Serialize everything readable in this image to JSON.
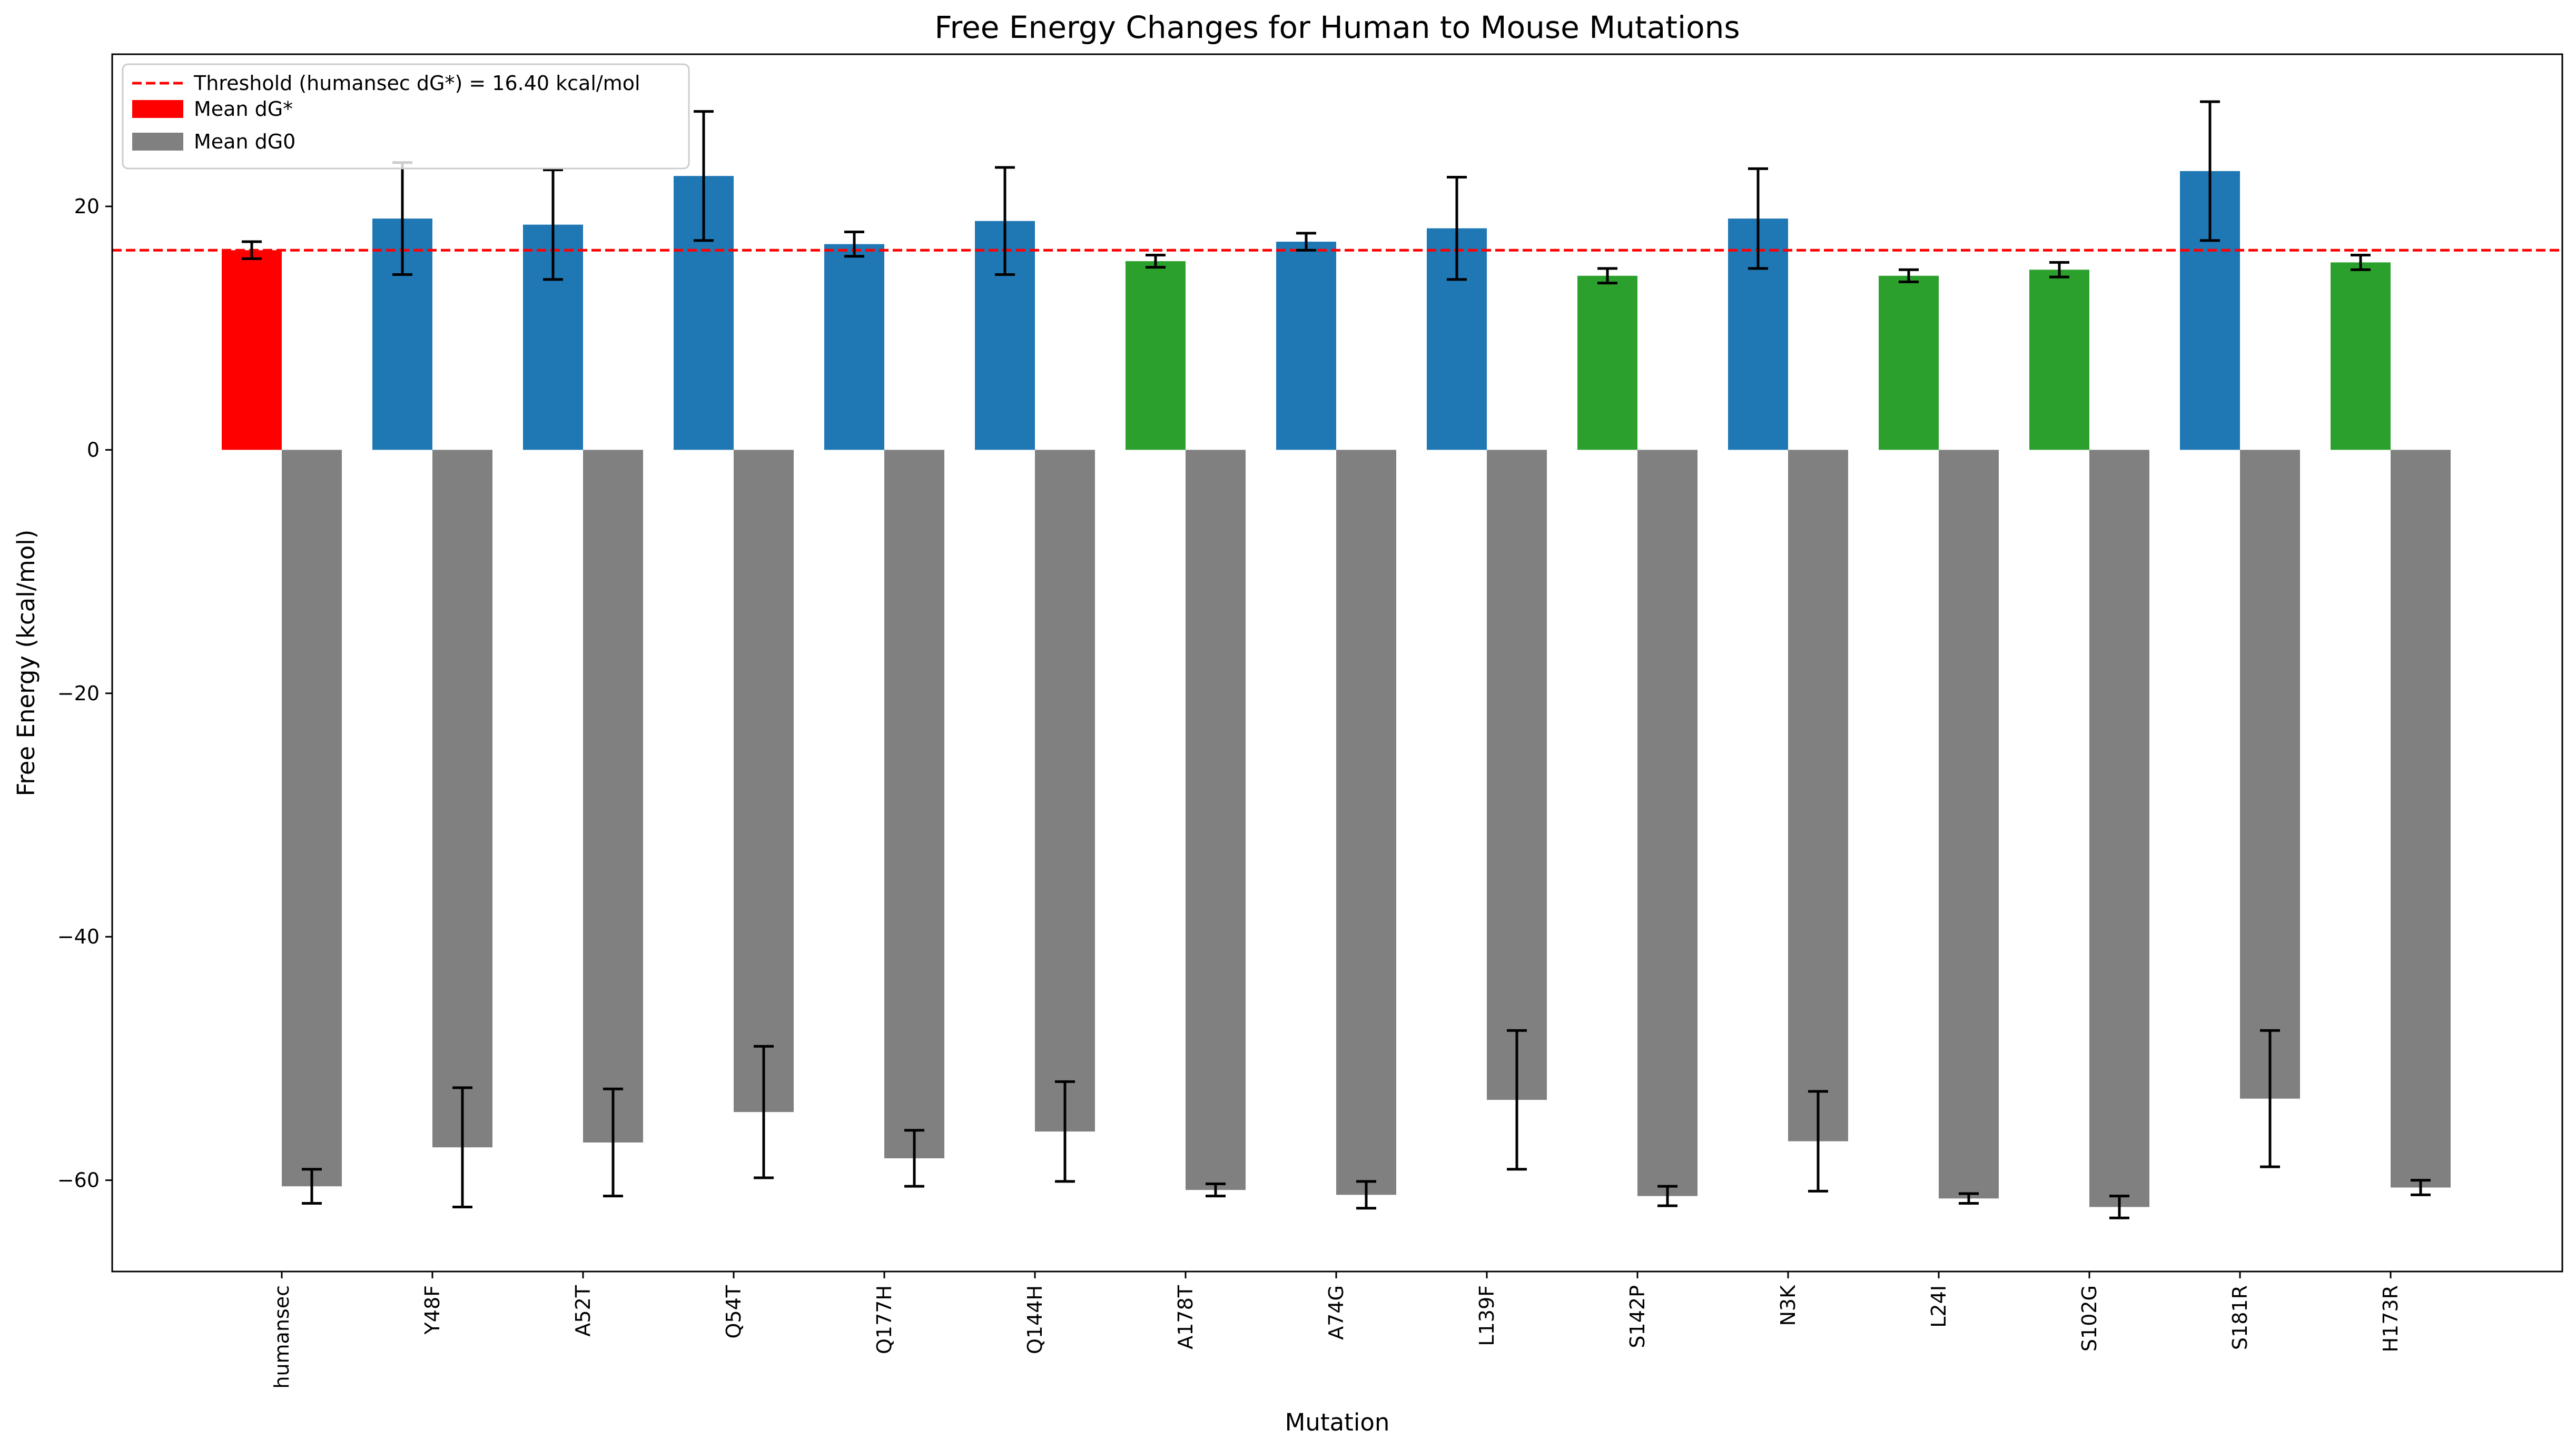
{
  "chart_data": {
    "type": "bar",
    "title": "Free Energy Changes for Human to Mouse Mutations",
    "xlabel": "Mutation",
    "ylabel": "Free Energy (kcal/mol)",
    "ylim": [
      -67.5,
      32.5
    ],
    "yticks": [
      20,
      0,
      -20,
      -40,
      -60
    ],
    "ytick_labels": [
      "20",
      "0",
      "−20",
      "−40",
      "−60"
    ],
    "grid": false,
    "legend_position": "top-left",
    "categories": [
      "humansec",
      "Y48F",
      "A52T",
      "Q54T",
      "Q177H",
      "Q144H",
      "A178T",
      "A74G",
      "L139F",
      "S142P",
      "N3K",
      "L24I",
      "S102G",
      "S181R",
      "H173R"
    ],
    "threshold": {
      "label": "Threshold (humansec dG*) = 16.40 kcal/mol",
      "value": 16.4,
      "color": "#ff0000",
      "style": "dashed"
    },
    "series": [
      {
        "name": "Mean dG*",
        "legend_color": "#ff0000",
        "values": [
          16.4,
          19.0,
          18.5,
          22.5,
          16.9,
          18.8,
          15.5,
          17.1,
          18.2,
          14.3,
          19.0,
          14.3,
          14.8,
          22.9,
          15.4
        ],
        "errors": [
          0.7,
          4.6,
          4.5,
          5.3,
          1.0,
          4.4,
          0.5,
          0.7,
          4.2,
          0.6,
          4.1,
          0.5,
          0.6,
          5.7,
          0.6
        ],
        "colors": [
          "#ff0000",
          "#1f77b4",
          "#1f77b4",
          "#1f77b4",
          "#1f77b4",
          "#1f77b4",
          "#2ca02c",
          "#1f77b4",
          "#1f77b4",
          "#2ca02c",
          "#1f77b4",
          "#2ca02c",
          "#2ca02c",
          "#1f77b4",
          "#2ca02c"
        ]
      },
      {
        "name": "Mean dG0",
        "legend_color": "#808080",
        "values": [
          -60.5,
          -57.3,
          -56.9,
          -54.4,
          -58.2,
          -56.0,
          -60.8,
          -61.2,
          -53.4,
          -61.3,
          -56.8,
          -61.5,
          -62.2,
          -53.3,
          -60.6
        ],
        "errors": [
          1.4,
          4.9,
          4.4,
          5.4,
          2.3,
          4.1,
          0.5,
          1.1,
          5.7,
          0.8,
          4.1,
          0.4,
          0.9,
          5.6,
          0.6
        ],
        "colors": [
          "#808080",
          "#808080",
          "#808080",
          "#808080",
          "#808080",
          "#808080",
          "#808080",
          "#808080",
          "#808080",
          "#808080",
          "#808080",
          "#808080",
          "#808080",
          "#808080",
          "#808080"
        ]
      }
    ]
  }
}
